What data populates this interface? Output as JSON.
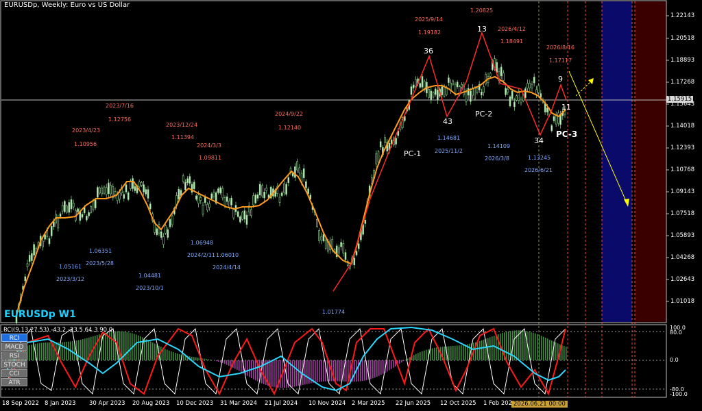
{
  "window": {
    "title": "EURUSDp, Weekly:  Euro vs US Dollar",
    "symbol_label": "EURUSDp W1"
  },
  "price_axis": {
    "ticks": [
      "1.22143",
      "1.20518",
      "1.18893",
      "1.17268",
      "1.15643",
      "1.14018",
      "1.12393",
      "1.10768",
      "1.09143",
      "1.07518",
      "1.05893",
      "1.04268",
      "1.02643",
      "1.01018"
    ],
    "current_price": "1.15915"
  },
  "date_axis": {
    "labels": [
      "18 Sep 2022",
      "8 Jan 2023",
      "30 Apr 2023",
      "20 Aug 2023",
      "10 Dec 2023",
      "31 Mar 2024",
      "21 Jul 2024",
      "10 Nov 2024",
      "2 Mar 2025",
      "22 Jun 2025",
      "12 Oct 2025",
      "1 Feb 202"
    ],
    "highlighted": "2026.06.21 00:00"
  },
  "indicator": {
    "header": "RCI(9,13,27,53) -43.2 -23.5 64.3 90.0",
    "levels": [
      "100.0",
      "80.0",
      "0.0",
      "-80.0",
      "-100.0"
    ],
    "buttons": [
      {
        "label": "RCI",
        "active": true
      },
      {
        "label": "MACD",
        "active": false
      },
      {
        "label": "RSI",
        "active": false
      },
      {
        "label": "STOCH",
        "active": false
      },
      {
        "label": "CCI",
        "active": false
      },
      {
        "label": "ATR",
        "active": false
      }
    ]
  },
  "annotations": {
    "highs": [
      {
        "date": "2023/4/23",
        "price": "1.10956"
      },
      {
        "date": "2023/7/16",
        "price": "1.12756"
      },
      {
        "date": "2023/12/24",
        "price": "1.11394"
      },
      {
        "date": "2024/3/3",
        "price": "1.09811"
      },
      {
        "date": "2024/9/22",
        "price": "1.12140"
      },
      {
        "date": "2025/9/14",
        "price": "1.19182"
      },
      {
        "date": "1.20825",
        "price": ""
      },
      {
        "date": "2026/4/12",
        "price": "1.18491"
      },
      {
        "date": "2026/8/16",
        "price": "1.17117"
      }
    ],
    "lows": [
      {
        "price": "1.05161",
        "date": "2023/3/12"
      },
      {
        "price": "1.06351",
        "date": "2023/5/28"
      },
      {
        "price": "1.04481",
        "date": "2023/10/1"
      },
      {
        "price": "1.06948",
        "date": "2024/2/11"
      },
      {
        "price": "1.06010",
        "date": "2024/4/14"
      },
      {
        "price": "1.01774",
        "date": ""
      },
      {
        "price": "1.14681",
        "date": "2025/11/2"
      },
      {
        "price": "1.14109",
        "date": "2026/3/8"
      },
      {
        "price": "1.13245",
        "date": "2026/6/21"
      }
    ],
    "wave_labels": [
      "36",
      "13",
      "43",
      "PC-2",
      "PC-1",
      "34",
      "9",
      "11",
      "PC-3"
    ]
  }
}
